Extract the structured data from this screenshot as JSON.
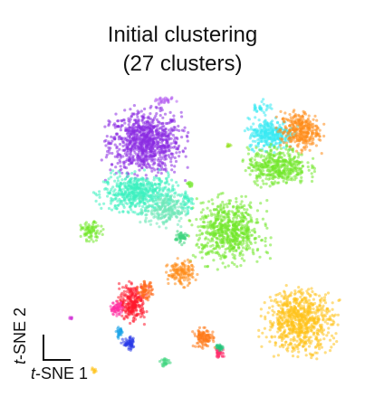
{
  "title": {
    "line1": "Initial clustering",
    "line2": "(27 clusters)"
  },
  "chart_data": {
    "type": "scatter",
    "title": "Initial clustering (27 clusters)",
    "xlabel": "t-SNE 1",
    "ylabel": "t-SNE 2",
    "grid": false,
    "legend": "none",
    "axes_style": "corner-arrows-only",
    "xlim": [
      0,
      100
    ],
    "ylim": [
      0,
      100
    ],
    "clusters": [
      {
        "color": "#8a2be2",
        "cx": 34,
        "cy": 80,
        "rx": 11,
        "ry": 10,
        "n": 900
      },
      {
        "color": "#3df0c0",
        "cx": 32,
        "cy": 63,
        "rx": 11,
        "ry": 6,
        "n": 550
      },
      {
        "color": "#6fe7b8",
        "cx": 40,
        "cy": 57,
        "rx": 6,
        "ry": 5,
        "n": 200
      },
      {
        "color": "#39e9f2",
        "cx": 73,
        "cy": 83,
        "rx": 7,
        "ry": 5,
        "n": 320
      },
      {
        "color": "#ff8c1a",
        "cx": 82,
        "cy": 84,
        "rx": 6,
        "ry": 6,
        "n": 320
      },
      {
        "color": "#72e82c",
        "cx": 75,
        "cy": 72,
        "rx": 9,
        "ry": 6,
        "n": 420
      },
      {
        "color": "#72e82c",
        "cx": 60,
        "cy": 50,
        "rx": 10,
        "ry": 10,
        "n": 650
      },
      {
        "color": "#3fd67f",
        "cx": 45,
        "cy": 48,
        "rx": 2,
        "ry": 2,
        "n": 50
      },
      {
        "color": "#ff8c1a",
        "cx": 45,
        "cy": 36,
        "rx": 4,
        "ry": 4,
        "n": 140
      },
      {
        "color": "#72e82c",
        "cx": 17,
        "cy": 50,
        "rx": 3,
        "ry": 3,
        "n": 80
      },
      {
        "color": "#ffc31c",
        "cx": 82,
        "cy": 20,
        "rx": 10,
        "ry": 10,
        "n": 750
      },
      {
        "color": "#ff1a2e",
        "cx": 30,
        "cy": 26,
        "rx": 4,
        "ry": 6,
        "n": 260
      },
      {
        "color": "#ff2fa3",
        "cx": 25,
        "cy": 24,
        "rx": 2,
        "ry": 2,
        "n": 60
      },
      {
        "color": "#ff6a1a",
        "cx": 34,
        "cy": 30,
        "rx": 2,
        "ry": 3,
        "n": 70
      },
      {
        "color": "#2a3be8",
        "cx": 29,
        "cy": 12,
        "rx": 2,
        "ry": 2,
        "n": 60
      },
      {
        "color": "#1aa3e8",
        "cx": 26,
        "cy": 16,
        "rx": 1,
        "ry": 2,
        "n": 30
      },
      {
        "color": "#ff7a1a",
        "cx": 52,
        "cy": 14,
        "rx": 3,
        "ry": 3,
        "n": 110
      },
      {
        "color": "#ff2f6e",
        "cx": 57,
        "cy": 9,
        "rx": 1.5,
        "ry": 1.5,
        "n": 40
      },
      {
        "color": "#22c47a",
        "cx": 57,
        "cy": 11,
        "rx": 1,
        "ry": 1,
        "n": 25
      },
      {
        "color": "#3fd67f",
        "cx": 40,
        "cy": 6,
        "rx": 1.5,
        "ry": 1.5,
        "n": 25
      },
      {
        "color": "#d02ed6",
        "cx": 11,
        "cy": 21,
        "rx": 0.6,
        "ry": 0.6,
        "n": 6
      },
      {
        "color": "#9be22c",
        "cx": 60,
        "cy": 79,
        "rx": 0.8,
        "ry": 0.6,
        "n": 10
      },
      {
        "color": "#39e9f2",
        "cx": 70,
        "cy": 92,
        "rx": 3,
        "ry": 2,
        "n": 30
      },
      {
        "color": "#3df0c0",
        "cx": 47,
        "cy": 60,
        "rx": 2,
        "ry": 4,
        "n": 40
      },
      {
        "color": "#b45ef0",
        "cx": 40,
        "cy": 94,
        "rx": 3,
        "ry": 1,
        "n": 30
      },
      {
        "color": "#72e82c",
        "cx": 48,
        "cy": 66,
        "rx": 1,
        "ry": 1,
        "n": 12
      },
      {
        "color": "#ffc31c",
        "cx": 18,
        "cy": 3,
        "rx": 1,
        "ry": 0.8,
        "n": 10
      }
    ]
  }
}
